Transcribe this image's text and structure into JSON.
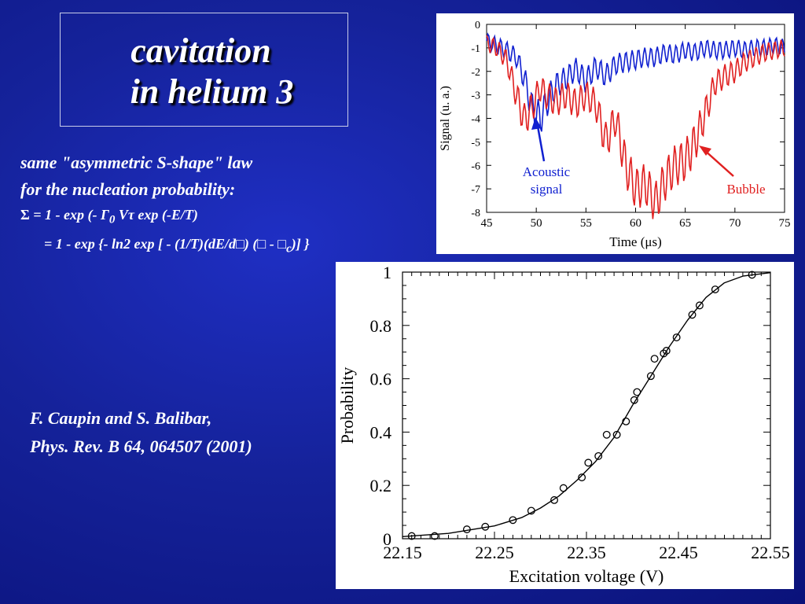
{
  "slide": {
    "title_line1": "cavitation",
    "title_line2": "in helium 3",
    "text_line1": "same \"asymmetric S-shape\" law",
    "text_line2": "for the nucleation probability:",
    "eq1": {
      "sigma": "Σ",
      "a": " = 1 - exp (- ",
      "gamma": "Γ",
      "sub0": "0",
      "b": " V",
      "tau": "τ",
      "c": " exp (-E/T)"
    },
    "eq2": {
      "a": "= 1 - exp {- ln2 exp [ - (1/T)(dE/d",
      "box1": "□",
      "b": ") (",
      "box2": "□",
      "c": " - ",
      "box3": "□",
      "sub_c": "c",
      "d": ")] }"
    },
    "citation_line1": "F. Caupin and S. Balibar,",
    "citation_line2": "Phys. Rev. B 64, 064507 (2001)"
  },
  "chart_data": [
    {
      "type": "line",
      "xlabel": "Time (μs)",
      "ylabel": "Signal (u. a.)",
      "xlim": [
        45,
        75
      ],
      "ylim": [
        -8,
        0
      ],
      "xticks": [
        45,
        50,
        55,
        60,
        65,
        70,
        75
      ],
      "yticks": [
        0,
        -1,
        -2,
        -3,
        -4,
        -5,
        -6,
        -7,
        -8
      ],
      "series": [
        {
          "name": "Acoustic signal",
          "color": "#1020d0",
          "x": [
            45,
            46,
            47,
            48,
            48.8,
            49.6,
            50.4,
            51.2,
            52,
            53,
            54,
            55,
            56,
            57,
            58,
            59,
            60,
            61,
            62,
            63,
            64,
            65,
            66,
            67,
            68,
            69,
            70,
            71,
            72,
            73,
            74,
            75
          ],
          "y": [
            -0.7,
            -0.9,
            -1.1,
            -1.4,
            -2.3,
            -3.6,
            -4.0,
            -3.2,
            -2.6,
            -2.3,
            -1.9,
            -2.4,
            -1.8,
            -2.2,
            -1.7,
            -1.6,
            -1.5,
            -1.4,
            -1.4,
            -1.2,
            -1.3,
            -1.1,
            -1.2,
            -1.0,
            -1.1,
            -1.1,
            -1.0,
            -1.1,
            -1.0,
            -1.0,
            -0.9,
            -1.0
          ]
        },
        {
          "name": "Bubble",
          "color": "#e02020",
          "x": [
            45,
            46,
            47,
            48,
            48.8,
            49.6,
            50.4,
            51.2,
            52,
            53,
            54,
            55,
            56,
            57,
            58,
            59,
            60,
            61,
            62,
            63,
            64,
            65,
            66,
            67,
            68,
            69,
            70,
            71,
            72,
            73,
            74,
            75
          ],
          "y": [
            -0.8,
            -1.0,
            -1.5,
            -3.0,
            -4.1,
            -3.5,
            -2.7,
            -3.1,
            -3.3,
            -3.0,
            -3.4,
            -3.0,
            -3.4,
            -5.0,
            -4.0,
            -6.0,
            -7.0,
            -6.8,
            -7.6,
            -6.6,
            -6.0,
            -5.8,
            -5.0,
            -3.8,
            -2.5,
            -2.2,
            -2.0,
            -1.6,
            -1.4,
            -1.2,
            -1.1,
            -1.0
          ]
        }
      ],
      "annotations": [
        {
          "text_line1": "Acoustic",
          "text_line2": "signal",
          "color": "#1020d0"
        },
        {
          "text": "Bubble",
          "color": "#e02020"
        }
      ]
    },
    {
      "type": "scatter",
      "xlabel": "Excitation voltage (V)",
      "ylabel": "Probability",
      "xlim": [
        22.15,
        22.55
      ],
      "ylim": [
        0,
        1
      ],
      "xticks": [
        22.15,
        22.25,
        22.35,
        22.45,
        22.55
      ],
      "yticks": [
        0,
        0.2,
        0.4,
        0.6,
        0.8,
        1
      ],
      "points_x": [
        22.16,
        22.185,
        22.22,
        22.24,
        22.27,
        22.29,
        22.315,
        22.325,
        22.345,
        22.352,
        22.363,
        22.372,
        22.383,
        22.393,
        22.402,
        22.405,
        22.42,
        22.424,
        22.434,
        22.437,
        22.448,
        22.465,
        22.473,
        22.49,
        22.53
      ],
      "points_y": [
        0.01,
        0.01,
        0.035,
        0.045,
        0.07,
        0.105,
        0.145,
        0.19,
        0.23,
        0.285,
        0.31,
        0.39,
        0.39,
        0.44,
        0.52,
        0.55,
        0.61,
        0.675,
        0.695,
        0.705,
        0.755,
        0.84,
        0.875,
        0.935,
        0.99
      ],
      "fit_curve": {
        "type": "asymmetric-s",
        "x": [
          22.15,
          22.2,
          22.25,
          22.28,
          22.3,
          22.32,
          22.34,
          22.36,
          22.38,
          22.4,
          22.42,
          22.44,
          22.46,
          22.48,
          22.5,
          22.52,
          22.55
        ],
        "y": [
          0.008,
          0.02,
          0.048,
          0.08,
          0.115,
          0.16,
          0.22,
          0.29,
          0.38,
          0.5,
          0.61,
          0.72,
          0.82,
          0.905,
          0.96,
          0.985,
          0.998
        ]
      }
    }
  ]
}
